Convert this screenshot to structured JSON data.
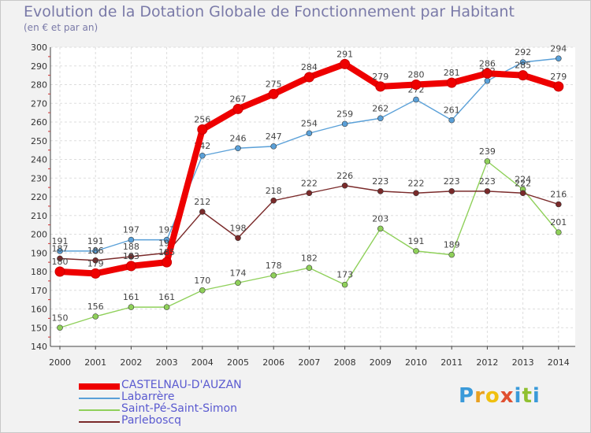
{
  "header": {
    "title": "Evolution de la Dotation Globale de Fonctionnement par Habitant",
    "subtitle": "(en € et par an)"
  },
  "logo": {
    "letters": [
      "P",
      "r",
      "o",
      "x",
      "i",
      "t",
      "i"
    ],
    "colors": [
      "#3a9ad9",
      "#e8a020",
      "#f0c010",
      "#e05030",
      "#3a9ad9",
      "#90c030",
      "#3a9ad9"
    ]
  },
  "chart_data": {
    "type": "line",
    "title": "Evolution de la Dotation Globale de Fonctionnement par Habitant",
    "subtitle": "(en € et par an)",
    "xlabel": "",
    "ylabel": "",
    "ylim": [
      140,
      300
    ],
    "yticks": [
      140,
      150,
      160,
      170,
      180,
      190,
      200,
      210,
      220,
      230,
      240,
      250,
      260,
      270,
      280,
      290,
      300
    ],
    "grid": true,
    "legend_position": "bottom-left",
    "x": [
      2000,
      2001,
      2002,
      2003,
      2004,
      2005,
      2006,
      2007,
      2008,
      2009,
      2010,
      2011,
      2012,
      2013,
      2014
    ],
    "series": [
      {
        "name": "Labarrère",
        "color": "#5aa0d8",
        "emphasis": false,
        "values": [
          191,
          191,
          197,
          197,
          242,
          246,
          247,
          254,
          259,
          262,
          272,
          261,
          282,
          292,
          294
        ]
      },
      {
        "name": "Saint-Pé-Saint-Simon",
        "color": "#8fd05a",
        "emphasis": false,
        "values": [
          150,
          156,
          161,
          161,
          170,
          174,
          178,
          182,
          173,
          203,
          191,
          189,
          239,
          224,
          201
        ]
      },
      {
        "name": "Parleboscq",
        "color": "#7a2a2a",
        "emphasis": false,
        "values": [
          187,
          186,
          188,
          190,
          212,
          198,
          218,
          222,
          226,
          223,
          222,
          223,
          223,
          222,
          216
        ]
      },
      {
        "name": "CASTELNAU-D'AUZAN",
        "color": "#ee0000",
        "emphasis": true,
        "values": [
          180,
          179,
          183,
          185,
          256,
          267,
          275,
          284,
          291,
          279,
          280,
          281,
          286,
          285,
          279
        ]
      }
    ],
    "legend_order": [
      "CASTELNAU-D'AUZAN",
      "Labarrère",
      "Saint-Pé-Saint-Simon",
      "Parleboscq"
    ]
  }
}
